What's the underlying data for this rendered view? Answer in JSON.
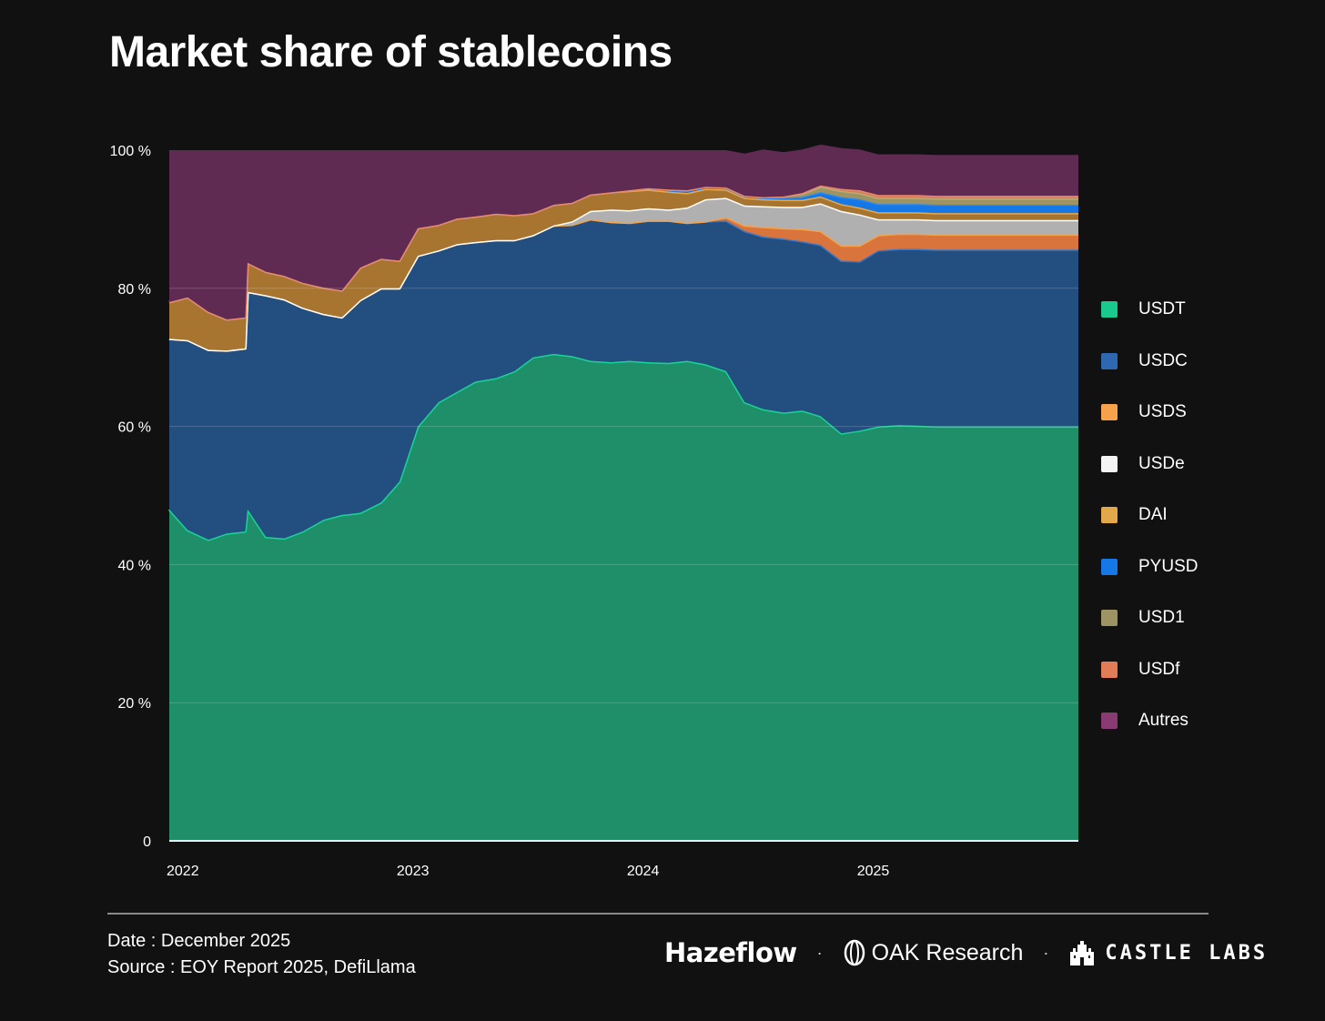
{
  "title": "Market share of stablecoins",
  "chart_data": {
    "type": "area",
    "stacking": "percent",
    "title": "Market share of stablecoins",
    "xlabel": "",
    "ylabel": "",
    "x_ticks": [
      "2022",
      "2023",
      "2024",
      "2025"
    ],
    "y_ticks": [
      "0",
      "20 %",
      "40 %",
      "60 %",
      "80 %",
      "100 %"
    ],
    "ylim": [
      0,
      100
    ],
    "x_range": [
      2022.0,
      2025.95
    ],
    "x": [
      2022.0,
      2022.08,
      2022.17,
      2022.25,
      2022.33,
      2022.34,
      2022.42,
      2022.5,
      2022.58,
      2022.67,
      2022.75,
      2022.83,
      2022.92,
      2023.0,
      2023.08,
      2023.17,
      2023.25,
      2023.33,
      2023.42,
      2023.5,
      2023.58,
      2023.67,
      2023.75,
      2023.83,
      2023.92,
      2024.0,
      2024.08,
      2024.17,
      2024.25,
      2024.33,
      2024.42,
      2024.5,
      2024.58,
      2024.67,
      2024.75,
      2024.83,
      2024.92,
      2025.0,
      2025.08,
      2025.17,
      2025.25,
      2025.33,
      2025.42,
      2025.5,
      2025.58,
      2025.67,
      2025.75,
      2025.83,
      2025.92,
      2025.95
    ],
    "series": [
      {
        "name": "USDT",
        "color": "#1f8f69",
        "line": "#19d496",
        "values": [
          48,
          45,
          43.6,
          44.5,
          44.8,
          48,
          44,
          43.8,
          44.8,
          46.5,
          47.2,
          47.5,
          49,
          52,
          60,
          63.5,
          65,
          66.5,
          67,
          68,
          70,
          70.5,
          70.2,
          69.5,
          69.3,
          69.5,
          69.3,
          69.2,
          69.5,
          69,
          68,
          63.5,
          62.5,
          62,
          62.3,
          61.5,
          59,
          59.4,
          60,
          60.2,
          60.1,
          60,
          60,
          60,
          60,
          60,
          60,
          60,
          60,
          60
        ]
      },
      {
        "name": "USDC",
        "color": "#234e80",
        "line": "#3b78c6",
        "values": [
          24.7,
          27.5,
          27.5,
          26.5,
          26.5,
          31.5,
          35,
          34.6,
          32.4,
          29.8,
          28.6,
          30.8,
          31,
          28,
          24.7,
          22,
          21.4,
          20.2,
          20,
          19,
          17.7,
          18.6,
          19,
          20.5,
          20.3,
          20,
          20.5,
          20.6,
          20,
          20.7,
          21.8,
          24.8,
          25,
          25.2,
          24.5,
          24.8,
          25,
          24.5,
          25.5,
          25.5,
          25.6,
          25.6,
          25.6,
          25.6,
          25.6,
          25.6,
          25.6,
          25.6,
          25.6,
          25.6
        ]
      },
      {
        "name": "USDS",
        "color": "#d9743d",
        "line": "#f5a24a",
        "values": [
          0,
          0,
          0,
          0,
          0,
          0,
          0,
          0,
          0,
          0,
          0,
          0,
          0,
          0,
          0,
          0,
          0,
          0,
          0,
          0,
          0,
          0,
          0,
          0,
          0,
          0,
          0,
          0,
          0,
          0,
          0.5,
          0.8,
          1.4,
          1.5,
          1.8,
          2.0,
          2.2,
          2.3,
          2.2,
          2.2,
          2.2,
          2.2,
          2.2,
          2.2,
          2.2,
          2.2,
          2.2,
          2.2,
          2.2,
          2.2
        ]
      },
      {
        "name": "USDe",
        "color": "#b0b0b0",
        "line": "#ffffff",
        "values": [
          0,
          0,
          0,
          0,
          0,
          0,
          0,
          0,
          0,
          0,
          0,
          0,
          0,
          0,
          0,
          0,
          0,
          0,
          0,
          0,
          0,
          0,
          0.5,
          1.2,
          1.8,
          1.8,
          1.8,
          1.6,
          2.2,
          3.2,
          2.8,
          2.9,
          3.0,
          3.1,
          3.2,
          4.0,
          5.0,
          4.5,
          2.3,
          2.1,
          2.1,
          2.1,
          2.1,
          2.1,
          2.1,
          2.1,
          2.1,
          2.1,
          2.1,
          2.1
        ]
      },
      {
        "name": "DAI",
        "color": "#a87530",
        "line": "#e8a94a",
        "values": [
          5.3,
          6.2,
          5.5,
          4.5,
          4.5,
          4.2,
          3.4,
          3.4,
          3.6,
          3.8,
          3.9,
          4.7,
          4.3,
          4,
          4,
          3.7,
          3.7,
          3.7,
          3.8,
          3.6,
          3.2,
          3,
          2.7,
          2.4,
          2.5,
          2.8,
          2.7,
          2.6,
          2.1,
          1.5,
          1.2,
          1.1,
          1.0,
          1.0,
          1.0,
          1.0,
          1.0,
          1.0,
          1.0,
          1.0,
          1.0,
          1.0,
          1.0,
          1.0,
          1.0,
          1.0,
          1.0,
          1.0,
          1.0,
          1.0
        ]
      },
      {
        "name": "PYUSD",
        "color": "#1677e6",
        "line": "#1e88ff",
        "values": [
          0,
          0,
          0,
          0,
          0,
          0,
          0,
          0,
          0,
          0,
          0,
          0,
          0,
          0,
          0,
          0,
          0,
          0,
          0,
          0,
          0,
          0,
          0,
          0,
          0,
          0.1,
          0.2,
          0.3,
          0.4,
          0.3,
          0.3,
          0.3,
          0.3,
          0.3,
          0.4,
          0.6,
          1,
          1.2,
          1.2,
          1.2,
          1.2,
          1.2,
          1.2,
          1.2,
          1.2,
          1.2,
          1.2,
          1.2,
          1.2,
          1.2
        ]
      },
      {
        "name": "USD1",
        "color": "#9d9363",
        "line": "#b8ad78",
        "values": [
          0,
          0,
          0,
          0,
          0,
          0,
          0,
          0,
          0,
          0,
          0,
          0,
          0,
          0,
          0,
          0,
          0,
          0,
          0,
          0,
          0,
          0,
          0,
          0,
          0,
          0,
          0,
          0,
          0,
          0,
          0,
          0,
          0,
          0.2,
          0.5,
          0.8,
          0.9,
          0.9,
          0.9,
          0.9,
          0.9,
          0.9,
          0.9,
          0.9,
          0.9,
          0.9,
          0.9,
          0.9,
          0.9,
          0.9
        ]
      },
      {
        "name": "USDf",
        "color": "#d97c55",
        "line": "#e8896a",
        "values": [
          0,
          0,
          0,
          0,
          0,
          0,
          0,
          0,
          0,
          0,
          0,
          0,
          0,
          0,
          0,
          0,
          0,
          0,
          0,
          0,
          0,
          0,
          0,
          0,
          0,
          0,
          0,
          0,
          0,
          0,
          0,
          0,
          0,
          0,
          0.1,
          0.2,
          0.3,
          0.4,
          0.4,
          0.4,
          0.4,
          0.4,
          0.4,
          0.4,
          0.4,
          0.4,
          0.4,
          0.4,
          0.4,
          0.4
        ]
      },
      {
        "name": "Autres",
        "color": "#602b52",
        "line": "#602b52",
        "values": [
          22,
          21.3,
          23.4,
          24.5,
          24.2,
          16.3,
          17.6,
          18.2,
          19.2,
          19.9,
          20.3,
          17,
          15.7,
          16,
          11.3,
          10.8,
          9.9,
          9.6,
          9.2,
          9.4,
          9.1,
          7.9,
          7.6,
          6.4,
          6.1,
          5.8,
          5.5,
          5.7,
          5.8,
          5.3,
          5.4,
          6.1,
          6.9,
          6.4,
          6.3,
          5.9,
          5.9,
          5.9,
          5.9,
          5.9,
          5.9,
          5.9,
          5.9,
          5.9,
          5.9,
          5.9,
          5.9,
          5.9,
          5.9,
          5.9
        ]
      }
    ]
  },
  "legend": [
    {
      "label": "USDT",
      "color": "#19c98e"
    },
    {
      "label": "USDC",
      "color": "#2e68b0"
    },
    {
      "label": "USDS",
      "color": "#f5a24a"
    },
    {
      "label": "USDe",
      "color": "#f4f4f4"
    },
    {
      "label": "DAI",
      "color": "#e3a84a"
    },
    {
      "label": "PYUSD",
      "color": "#1677e6"
    },
    {
      "label": "USD1",
      "color": "#9d9363"
    },
    {
      "label": "USDf",
      "color": "#e07d57"
    },
    {
      "label": "Autres",
      "color": "#8a3a72"
    }
  ],
  "footer": {
    "date": "Date : December 2025",
    "source": "Source : EOY Report 2025, DefiLlama",
    "brands": [
      "Hazeflow",
      "OAK Research",
      "CASTLE LABS"
    ],
    "separator": "·"
  }
}
